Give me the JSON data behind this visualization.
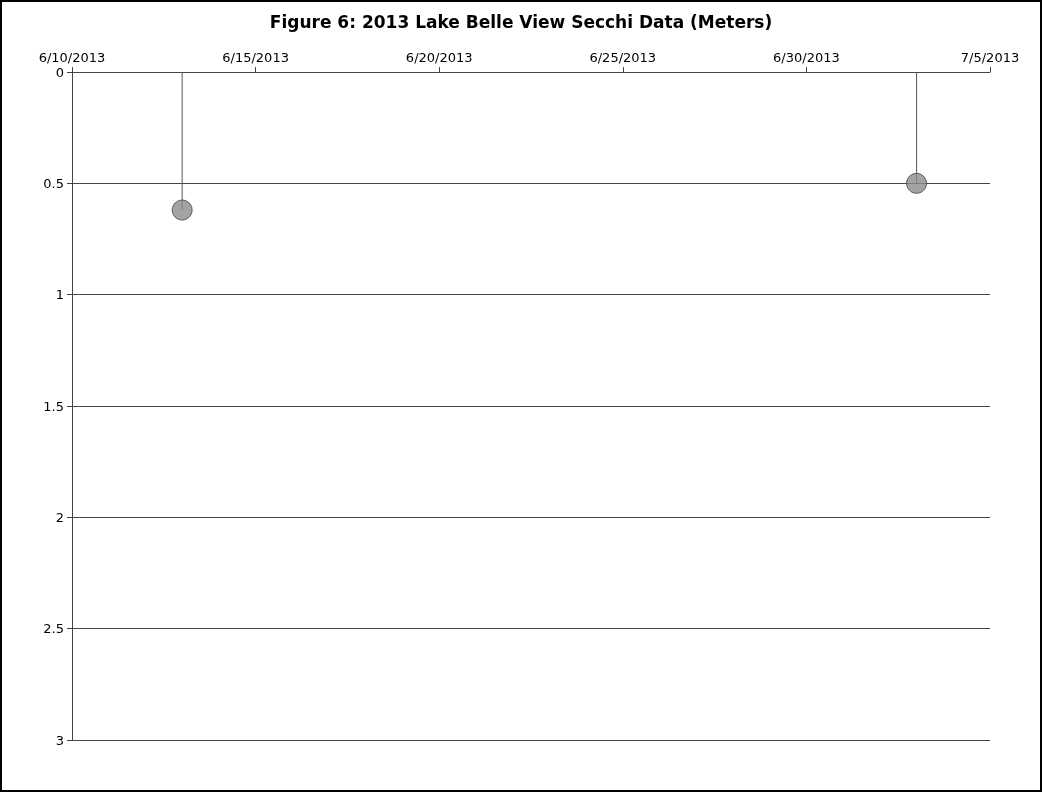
{
  "chart_data": {
    "type": "lollipop",
    "title": "Figure 6: 2013 Lake Belle View Secchi Data (Meters)",
    "x": [
      "2013-06-13",
      "2013-07-03"
    ],
    "values": [
      0.62,
      0.5
    ],
    "color": "#8c8c8c",
    "marker": "circle",
    "xlim": [
      "2013-06-10",
      "2013-07-05"
    ],
    "xticks": [
      {
        "value": "2013-06-10",
        "label": "6/10/2013"
      },
      {
        "value": "2013-06-15",
        "label": "6/15/2013"
      },
      {
        "value": "2013-06-20",
        "label": "6/20/2013"
      },
      {
        "value": "2013-06-25",
        "label": "6/25/2013"
      },
      {
        "value": "2013-06-30",
        "label": "6/30/2013"
      },
      {
        "value": "2013-07-05",
        "label": "7/5/2013"
      }
    ],
    "ylim": [
      3,
      0
    ],
    "yticks": [
      0,
      0.5,
      1,
      1.5,
      2,
      2.5,
      3
    ],
    "grid": "y"
  }
}
